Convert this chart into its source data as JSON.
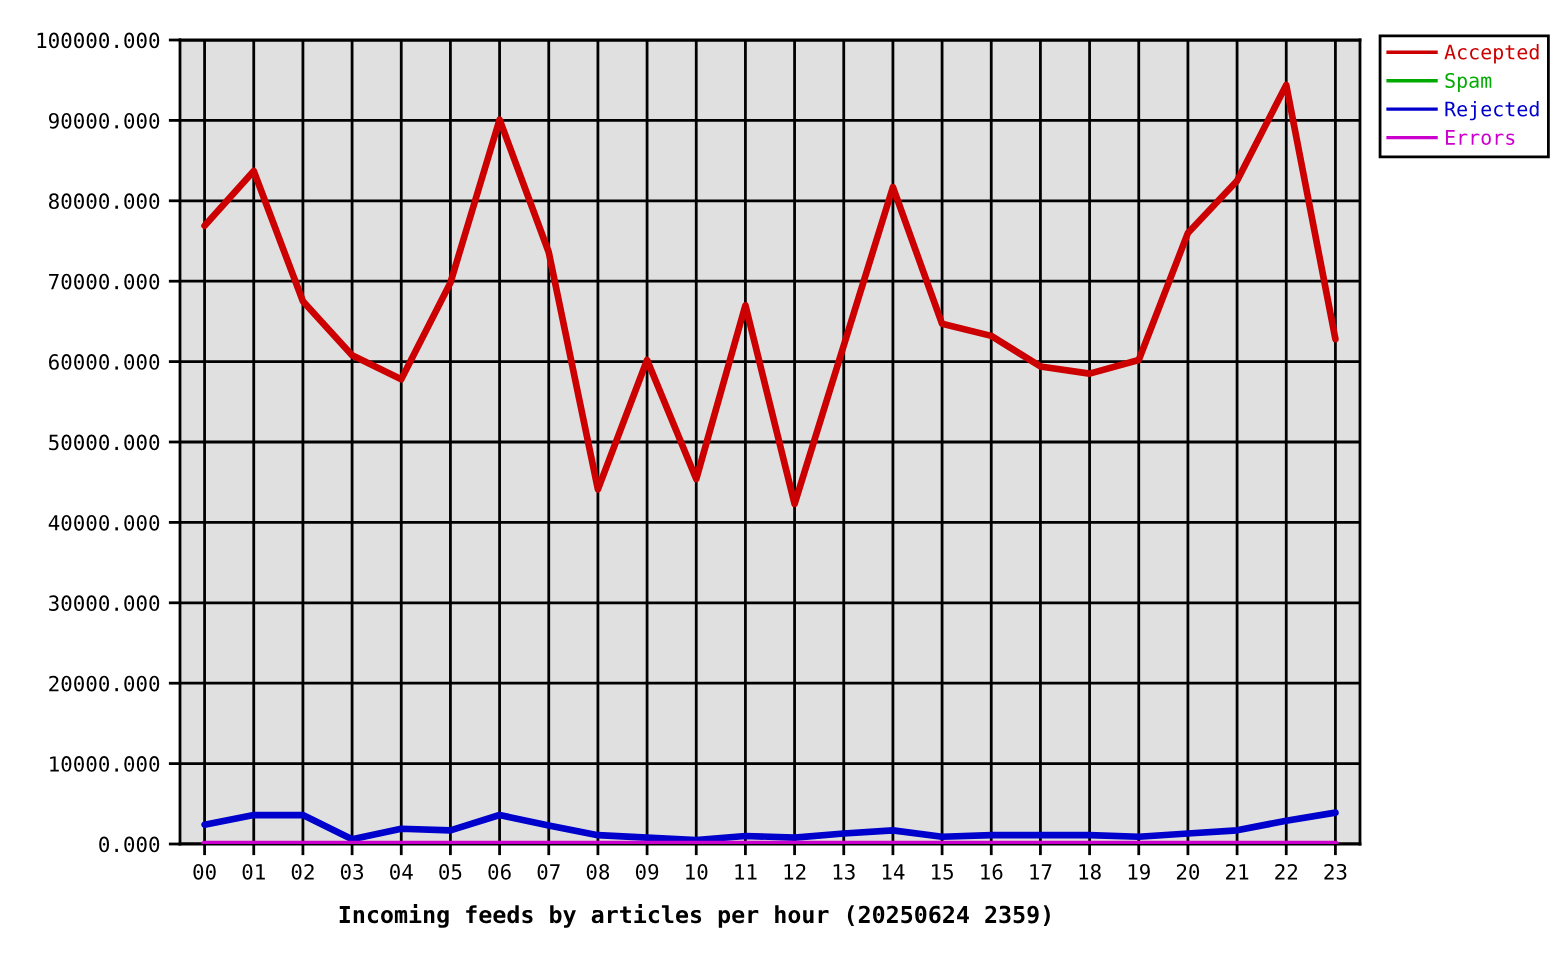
{
  "chart_data": {
    "type": "line",
    "xlabel": "Incoming feeds by articles per hour (20250624 2359)",
    "categories": [
      "00",
      "01",
      "02",
      "03",
      "04",
      "05",
      "06",
      "07",
      "08",
      "09",
      "10",
      "11",
      "12",
      "13",
      "14",
      "15",
      "16",
      "17",
      "18",
      "19",
      "20",
      "21",
      "22",
      "23"
    ],
    "series": [
      {
        "name": "Accepted",
        "color": "#cc0000",
        "values": [
          76900,
          83700,
          67500,
          60800,
          57800,
          69800,
          90100,
          73600,
          44100,
          60200,
          45400,
          67000,
          42300,
          62000,
          81700,
          64700,
          63200,
          59400,
          58500,
          60200,
          76000,
          82500,
          94400,
          62800
        ]
      },
      {
        "name": "Spam",
        "color": "#00aa00",
        "values": [
          null,
          null,
          null,
          null,
          null,
          null,
          null,
          null,
          null,
          null,
          null,
          null,
          null,
          null,
          null,
          null,
          null,
          null,
          null,
          null,
          null,
          null,
          null,
          null
        ]
      },
      {
        "name": "Rejected",
        "color": "#0000cc",
        "values": [
          2400,
          3600,
          3600,
          600,
          1900,
          1700,
          3600,
          2300,
          1100,
          800,
          500,
          1000,
          800,
          1300,
          1700,
          900,
          1100,
          1100,
          1100,
          900,
          1300,
          1700,
          2900,
          3900
        ]
      },
      {
        "name": "Errors",
        "color": "#cc00cc",
        "values": [
          0,
          0,
          0,
          0,
          0,
          0,
          0,
          0,
          0,
          0,
          0,
          0,
          0,
          0,
          0,
          0,
          0,
          0,
          0,
          0,
          0,
          0,
          0,
          0
        ]
      }
    ],
    "ylim": [
      0,
      100000
    ],
    "yticks": [
      {
        "value": 0,
        "label": "0.000"
      },
      {
        "value": 10000,
        "label": "10000.000"
      },
      {
        "value": 20000,
        "label": "20000.000"
      },
      {
        "value": 30000,
        "label": "30000.000"
      },
      {
        "value": 40000,
        "label": "40000.000"
      },
      {
        "value": 50000,
        "label": "50000.000"
      },
      {
        "value": 60000,
        "label": "60000.000"
      },
      {
        "value": 70000,
        "label": "70000.000"
      },
      {
        "value": 80000,
        "label": "80000.000"
      },
      {
        "value": 90000,
        "label": "90000.000"
      },
      {
        "value": 100000,
        "label": "100000.000"
      }
    ],
    "grid": true,
    "legend": "right",
    "line_style": "solid"
  }
}
